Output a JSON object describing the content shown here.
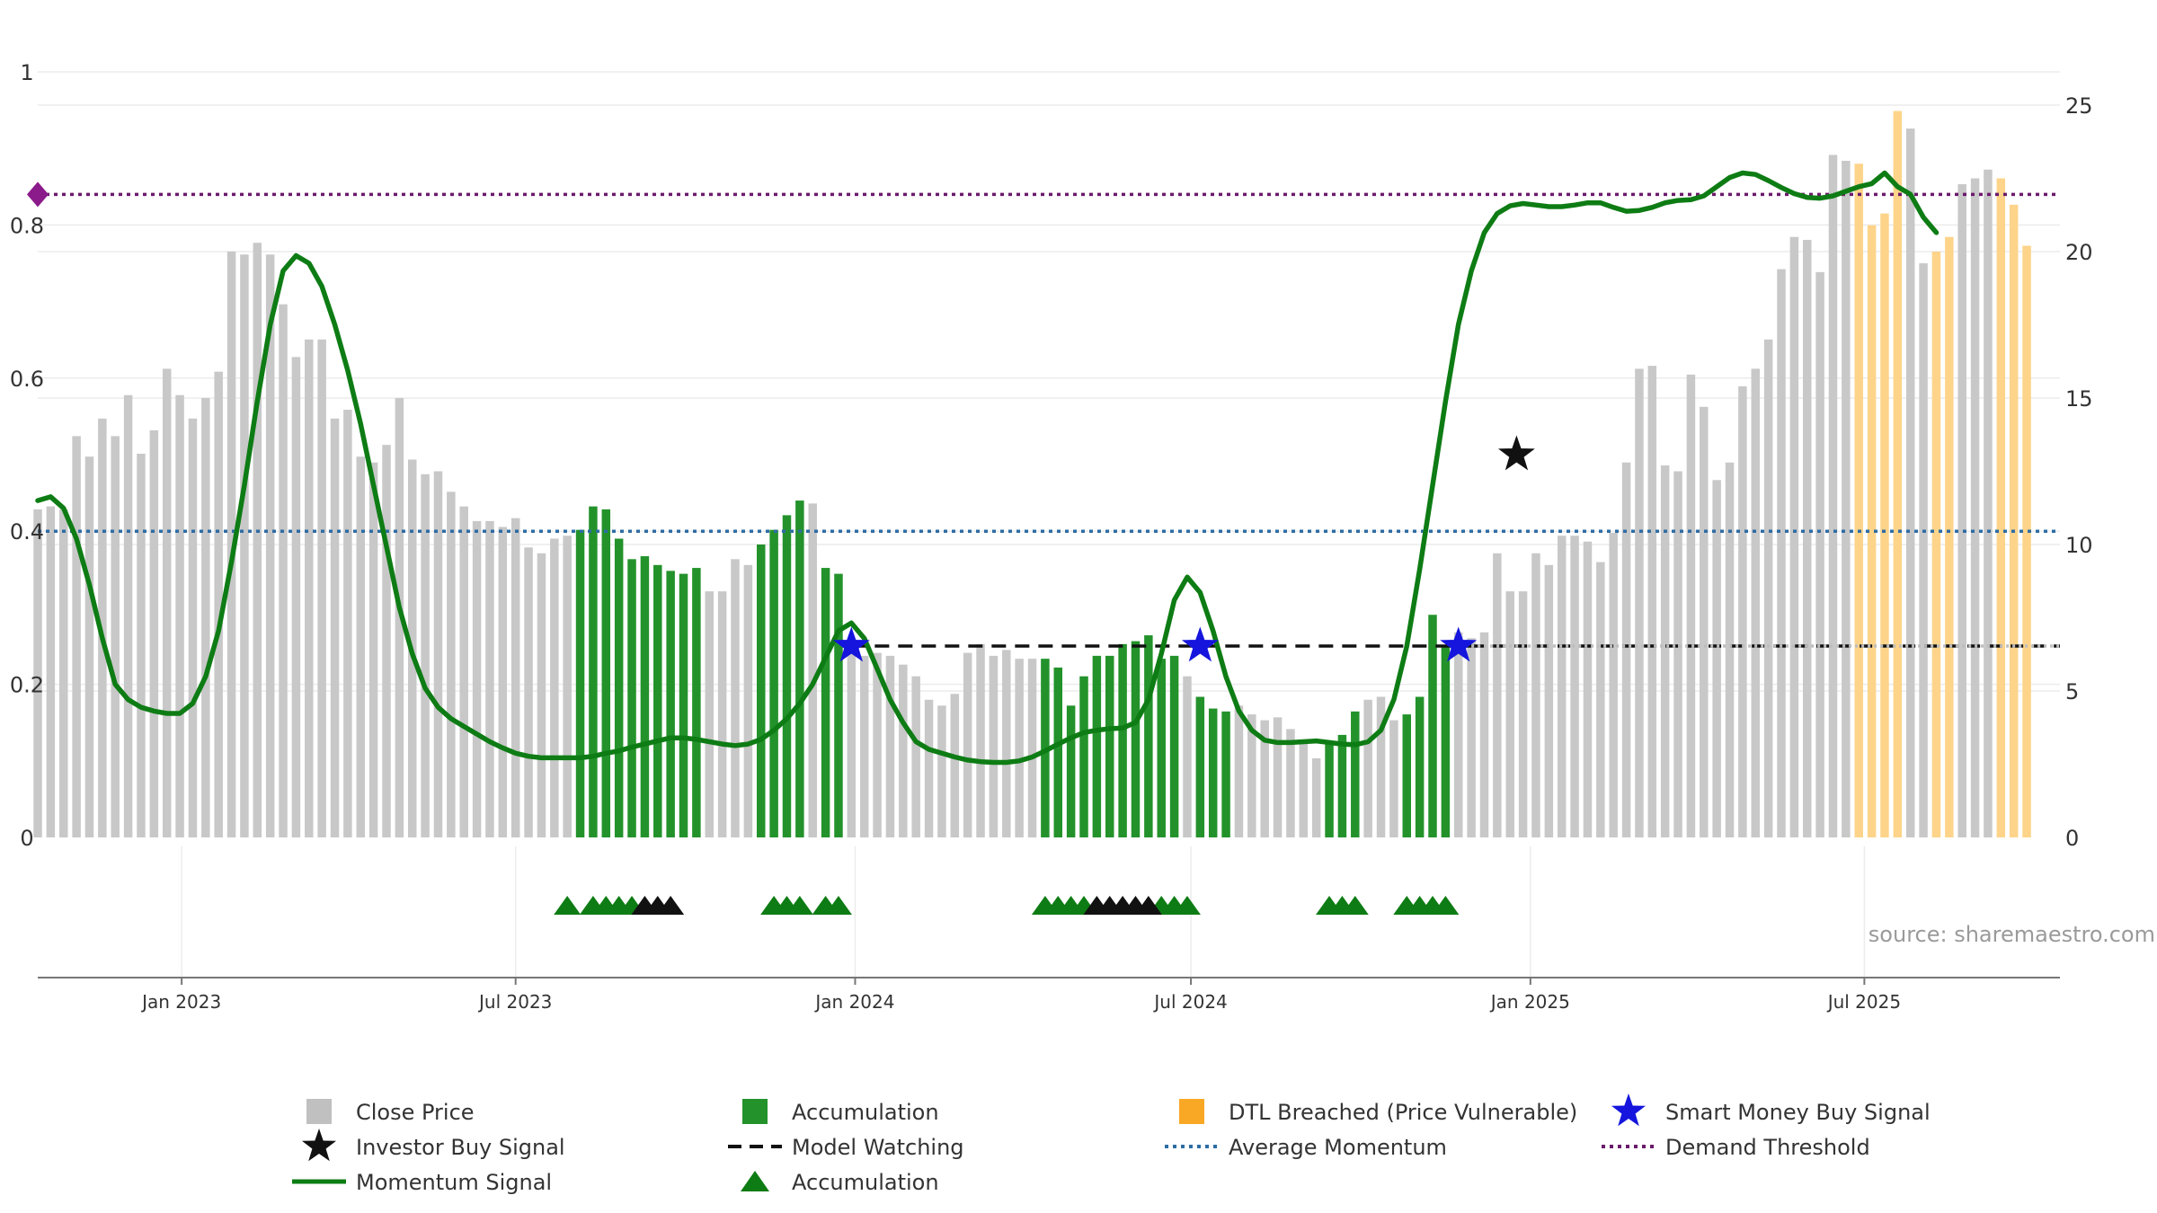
{
  "chart_data": {
    "type": "bar",
    "source": "source: sharemaestro.com",
    "x_range": [
      "2022-10-15",
      "2025-10-15"
    ],
    "y_left": {
      "range": [
        0,
        1
      ],
      "ticks": [
        {
          "v": 0,
          "label": "0"
        },
        {
          "v": 0.2,
          "label": "0.2"
        },
        {
          "v": 0.4,
          "label": "0.4"
        },
        {
          "v": 0.6,
          "label": "0.6"
        },
        {
          "v": 0.8,
          "label": "0.8"
        },
        {
          "v": 1,
          "label": "1"
        }
      ]
    },
    "y_right": {
      "range": [
        0,
        25
      ],
      "ticks": [
        {
          "v": 0,
          "label": "0"
        },
        {
          "v": 5,
          "label": "5"
        },
        {
          "v": 10,
          "label": "10"
        },
        {
          "v": 15,
          "label": "15"
        },
        {
          "v": 20,
          "label": "20"
        },
        {
          "v": 25,
          "label": "25"
        }
      ]
    },
    "x_ticks": [
      {
        "date": "2023-01-01",
        "label": "Jan 2023"
      },
      {
        "date": "2023-07-01",
        "label": "Jul 2023"
      },
      {
        "date": "2024-01-01",
        "label": "Jan 2024"
      },
      {
        "date": "2024-07-01",
        "label": "Jul 2024"
      },
      {
        "date": "2025-01-01",
        "label": "Jan 2025"
      },
      {
        "date": "2025-07-01",
        "label": "Jul 2025"
      }
    ],
    "weekly_start": "2022-10-15",
    "close_price": [
      11.2,
      11.3,
      11.2,
      13.7,
      13.0,
      14.3,
      13.7,
      15.1,
      13.1,
      13.9,
      16.0,
      15.1,
      14.3,
      15.0,
      15.9,
      20.0,
      19.9,
      20.3,
      19.9,
      18.2,
      16.4,
      17.0,
      17.0,
      14.3,
      14.6,
      13.0,
      12.8,
      13.4,
      15.0,
      12.9,
      12.4,
      12.5,
      11.8,
      11.3,
      10.8,
      10.8,
      10.6,
      10.9,
      9.9,
      9.7,
      10.2,
      10.3,
      10.5,
      11.3,
      11.2,
      10.2,
      9.5,
      9.6,
      9.3,
      9.1,
      9.0,
      9.2,
      8.4,
      8.4,
      9.5,
      9.3,
      10.0,
      10.5,
      11.0,
      11.5,
      11.4,
      9.2,
      9.0,
      6.5,
      6.2,
      6.3,
      6.2,
      5.9,
      5.5,
      4.7,
      4.5,
      4.9,
      6.3,
      6.6,
      6.2,
      6.4,
      6.1,
      6.1,
      6.1,
      5.8,
      4.5,
      5.5,
      6.2,
      6.2,
      6.6,
      6.7,
      6.9,
      6.1,
      6.2,
      5.5,
      4.8,
      4.4,
      4.3,
      4.5,
      4.2,
      4.0,
      4.1,
      3.7,
      3.2,
      2.7,
      3.2,
      3.5,
      4.3,
      4.7,
      4.8,
      4.0,
      4.2,
      4.8,
      7.6,
      6.5,
      7.0,
      6.8,
      7.0,
      9.7,
      8.4,
      8.4,
      9.7,
      9.3,
      10.3,
      10.3,
      10.1,
      9.4,
      10.4,
      12.8,
      16.0,
      16.1,
      12.7,
      12.5,
      15.8,
      14.7,
      12.2,
      12.8,
      15.4,
      16.0,
      17.0,
      19.4,
      20.5,
      20.4,
      19.3,
      23.3,
      23.1,
      23.0,
      20.9,
      21.3,
      24.8,
      24.2,
      19.6,
      20.0,
      20.5,
      22.3,
      22.5,
      22.8,
      22.5,
      21.6,
      20.2
    ],
    "bar_colors": {
      "close": "#c8c8c8",
      "accumulation": "#23922b",
      "dtl": "#fdd48a"
    },
    "accumulation_ranges": [
      [
        42,
        51
      ],
      [
        56,
        59
      ],
      [
        61,
        62
      ],
      [
        78,
        88
      ],
      [
        90,
        92
      ],
      [
        100,
        102
      ],
      [
        106,
        109
      ]
    ],
    "dtl_ranges": [
      [
        141,
        144
      ],
      [
        147,
        148
      ],
      [
        152,
        155
      ]
    ],
    "momentum": [
      [
        0,
        0.44
      ],
      [
        1,
        0.445
      ],
      [
        2,
        0.43
      ],
      [
        3,
        0.39
      ],
      [
        4,
        0.33
      ],
      [
        5,
        0.26
      ],
      [
        6,
        0.2
      ],
      [
        7,
        0.18
      ],
      [
        8,
        0.17
      ],
      [
        9,
        0.165
      ],
      [
        10,
        0.162
      ],
      [
        11,
        0.162
      ],
      [
        12,
        0.175
      ],
      [
        13,
        0.21
      ],
      [
        14,
        0.27
      ],
      [
        15,
        0.36
      ],
      [
        16,
        0.46
      ],
      [
        17,
        0.57
      ],
      [
        18,
        0.67
      ],
      [
        19,
        0.74
      ],
      [
        20,
        0.76
      ],
      [
        21,
        0.75
      ],
      [
        22,
        0.72
      ],
      [
        23,
        0.67
      ],
      [
        24,
        0.61
      ],
      [
        25,
        0.54
      ],
      [
        26,
        0.46
      ],
      [
        27,
        0.38
      ],
      [
        28,
        0.3
      ],
      [
        29,
        0.24
      ],
      [
        30,
        0.195
      ],
      [
        31,
        0.17
      ],
      [
        32,
        0.155
      ],
      [
        33,
        0.145
      ],
      [
        34,
        0.135
      ],
      [
        35,
        0.125
      ],
      [
        36,
        0.117
      ],
      [
        37,
        0.11
      ],
      [
        38,
        0.106
      ],
      [
        39,
        0.104
      ],
      [
        40,
        0.104
      ],
      [
        41,
        0.104
      ],
      [
        42,
        0.104
      ],
      [
        43,
        0.106
      ],
      [
        44,
        0.11
      ],
      [
        45,
        0.113
      ],
      [
        46,
        0.118
      ],
      [
        47,
        0.122
      ],
      [
        48,
        0.126
      ],
      [
        49,
        0.13
      ],
      [
        50,
        0.13
      ],
      [
        51,
        0.128
      ],
      [
        52,
        0.125
      ],
      [
        53,
        0.122
      ],
      [
        54,
        0.12
      ],
      [
        55,
        0.122
      ],
      [
        56,
        0.128
      ],
      [
        57,
        0.14
      ],
      [
        58,
        0.155
      ],
      [
        59,
        0.175
      ],
      [
        60,
        0.2
      ],
      [
        61,
        0.235
      ],
      [
        62,
        0.27
      ],
      [
        63,
        0.28
      ],
      [
        64,
        0.26
      ],
      [
        65,
        0.22
      ],
      [
        66,
        0.18
      ],
      [
        67,
        0.15
      ],
      [
        68,
        0.125
      ],
      [
        69,
        0.115
      ],
      [
        70,
        0.11
      ],
      [
        71,
        0.105
      ],
      [
        72,
        0.101
      ],
      [
        73,
        0.099
      ],
      [
        74,
        0.098
      ],
      [
        75,
        0.098
      ],
      [
        76,
        0.1
      ],
      [
        77,
        0.105
      ],
      [
        78,
        0.113
      ],
      [
        79,
        0.122
      ],
      [
        80,
        0.13
      ],
      [
        81,
        0.137
      ],
      [
        82,
        0.14
      ],
      [
        83,
        0.142
      ],
      [
        84,
        0.143
      ],
      [
        85,
        0.15
      ],
      [
        86,
        0.18
      ],
      [
        87,
        0.24
      ],
      [
        88,
        0.31
      ],
      [
        89,
        0.34
      ],
      [
        90,
        0.32
      ],
      [
        91,
        0.27
      ],
      [
        92,
        0.21
      ],
      [
        93,
        0.165
      ],
      [
        94,
        0.14
      ],
      [
        95,
        0.127
      ],
      [
        96,
        0.124
      ],
      [
        97,
        0.124
      ],
      [
        98,
        0.125
      ],
      [
        99,
        0.126
      ],
      [
        100,
        0.124
      ],
      [
        101,
        0.122
      ],
      [
        102,
        0.121
      ],
      [
        103,
        0.125
      ],
      [
        104,
        0.14
      ],
      [
        105,
        0.18
      ],
      [
        106,
        0.25
      ],
      [
        107,
        0.35
      ],
      [
        108,
        0.46
      ],
      [
        109,
        0.57
      ],
      [
        110,
        0.67
      ],
      [
        111,
        0.74
      ],
      [
        112,
        0.79
      ],
      [
        113,
        0.815
      ],
      [
        114,
        0.825
      ],
      [
        115,
        0.828
      ],
      [
        116,
        0.826
      ],
      [
        117,
        0.824
      ],
      [
        118,
        0.824
      ],
      [
        119,
        0.826
      ],
      [
        120,
        0.829
      ],
      [
        121,
        0.829
      ],
      [
        122,
        0.823
      ],
      [
        123,
        0.818
      ],
      [
        124,
        0.819
      ],
      [
        125,
        0.823
      ],
      [
        126,
        0.829
      ],
      [
        127,
        0.832
      ],
      [
        128,
        0.833
      ],
      [
        129,
        0.838
      ],
      [
        130,
        0.85
      ],
      [
        131,
        0.862
      ],
      [
        132,
        0.868
      ],
      [
        133,
        0.866
      ],
      [
        134,
        0.858
      ],
      [
        135,
        0.849
      ],
      [
        136,
        0.841
      ],
      [
        137,
        0.836
      ],
      [
        138,
        0.835
      ],
      [
        139,
        0.838
      ],
      [
        140,
        0.844
      ],
      [
        141,
        0.85
      ],
      [
        142,
        0.854
      ],
      [
        143,
        0.868
      ],
      [
        144,
        0.85
      ],
      [
        145,
        0.84
      ],
      [
        146,
        0.81
      ],
      [
        147,
        0.79
      ]
    ],
    "reference_lines": [
      {
        "name": "Average Momentum",
        "value": 0.4,
        "color": "#2e6da4"
      },
      {
        "name": "Demand Threshold",
        "value": 0.84,
        "color": "#6b1a6b"
      },
      {
        "name": "Model Watching",
        "value": 0.25,
        "color": "#111111"
      }
    ],
    "stars": [
      {
        "x": 114.5,
        "y": 0.5,
        "color": "#111111",
        "name": "Investor Buy Signal"
      },
      {
        "x": 63,
        "y": 0.25,
        "color": "#1515dd",
        "name": "Smart Money Buy Signal"
      },
      {
        "x": 90,
        "y": 0.25,
        "color": "#1515dd",
        "name": "Smart Money Buy Signal"
      },
      {
        "x": 110,
        "y": 0.25,
        "color": "#1515dd",
        "name": "Smart Money Buy Signal"
      }
    ],
    "triangles_green": [
      41,
      43,
      44,
      45,
      46,
      57,
      58,
      59,
      61,
      62,
      78,
      79,
      80,
      81,
      87,
      88,
      89,
      100,
      101,
      102,
      106,
      107,
      108,
      109
    ],
    "triangles_black": [
      47,
      48,
      49,
      82,
      83,
      84,
      85,
      86
    ],
    "legend": [
      {
        "label": "Close Price",
        "kind": "square",
        "color": "#c0c0c0"
      },
      {
        "label": "Accumulation",
        "kind": "square",
        "color": "#23922b"
      },
      {
        "label": "DTL Breached (Price Vulnerable)",
        "kind": "square",
        "color": "#f9a825"
      },
      {
        "label": "Smart Money Buy Signal",
        "kind": "star",
        "color": "#1515dd"
      },
      {
        "label": "Investor Buy Signal",
        "kind": "star",
        "color": "#111111"
      },
      {
        "label": "Model Watching",
        "kind": "dash",
        "color": "#111111"
      },
      {
        "label": "Average Momentum",
        "kind": "dot",
        "color": "#2e6da4"
      },
      {
        "label": "Demand Threshold",
        "kind": "dot",
        "color": "#6b1a6b"
      },
      {
        "label": "Momentum Signal",
        "kind": "line",
        "color": "#0e7c14"
      },
      {
        "label": "Accumulation",
        "kind": "triangle",
        "color": "#0e7c14"
      }
    ]
  }
}
